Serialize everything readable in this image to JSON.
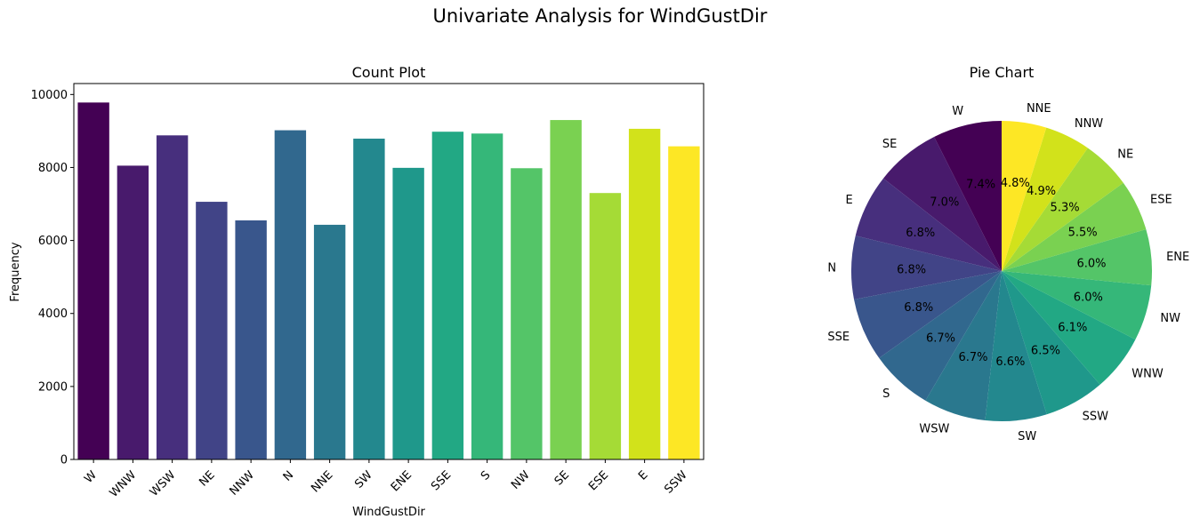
{
  "figure": {
    "title": "Univariate Analysis for WindGustDir"
  },
  "chart_data": [
    {
      "type": "bar",
      "title": "Count Plot",
      "xlabel": "WindGustDir",
      "ylabel": "Frequency",
      "categories": [
        "W",
        "WNW",
        "WSW",
        "NE",
        "NNW",
        "N",
        "NNE",
        "SW",
        "ENE",
        "SSE",
        "S",
        "NW",
        "SE",
        "ESE",
        "E",
        "SSW"
      ],
      "values": [
        9780,
        8050,
        8880,
        7060,
        6550,
        9020,
        6430,
        8790,
        7990,
        8980,
        8930,
        7980,
        9300,
        7300,
        9060,
        8580
      ],
      "ylim": [
        0,
        10300
      ],
      "yticks": [
        0,
        2000,
        4000,
        6000,
        8000,
        10000
      ],
      "colors": [
        "#440154",
        "#481a6c",
        "#472f7d",
        "#414487",
        "#39568c",
        "#31688e",
        "#2a788e",
        "#23888e",
        "#1f988b",
        "#22a884",
        "#35b779",
        "#54c568",
        "#7ad151",
        "#a5db36",
        "#d2e21b",
        "#fde725"
      ],
      "colormap": "viridis",
      "grid": false
    },
    {
      "type": "pie",
      "title": "Pie Chart",
      "labels": [
        "W",
        "SE",
        "E",
        "N",
        "SSE",
        "S",
        "WSW",
        "SW",
        "SSW",
        "WNW",
        "NW",
        "ENE",
        "ESE",
        "NE",
        "NNW",
        "NNE"
      ],
      "percent_labels": [
        "7.4%",
        "7.0%",
        "6.8%",
        "6.8%",
        "6.8%",
        "6.7%",
        "6.7%",
        "6.6%",
        "6.5%",
        "6.1%",
        "6.0%",
        "6.0%",
        "5.5%",
        "5.3%",
        "4.9%",
        "4.8%"
      ],
      "values": [
        7.4,
        7.0,
        6.8,
        6.8,
        6.8,
        6.7,
        6.7,
        6.6,
        6.5,
        6.1,
        6.0,
        6.0,
        5.5,
        5.3,
        4.9,
        4.8
      ],
      "colors": [
        "#440154",
        "#481a6c",
        "#472f7d",
        "#414487",
        "#39568c",
        "#31688e",
        "#2a788e",
        "#23888e",
        "#1f988b",
        "#22a884",
        "#35b779",
        "#54c568",
        "#7ad151",
        "#a5db36",
        "#d2e21b",
        "#fde725"
      ],
      "colormap": "viridis",
      "startangle": 90,
      "direction": "counterclockwise"
    }
  ]
}
